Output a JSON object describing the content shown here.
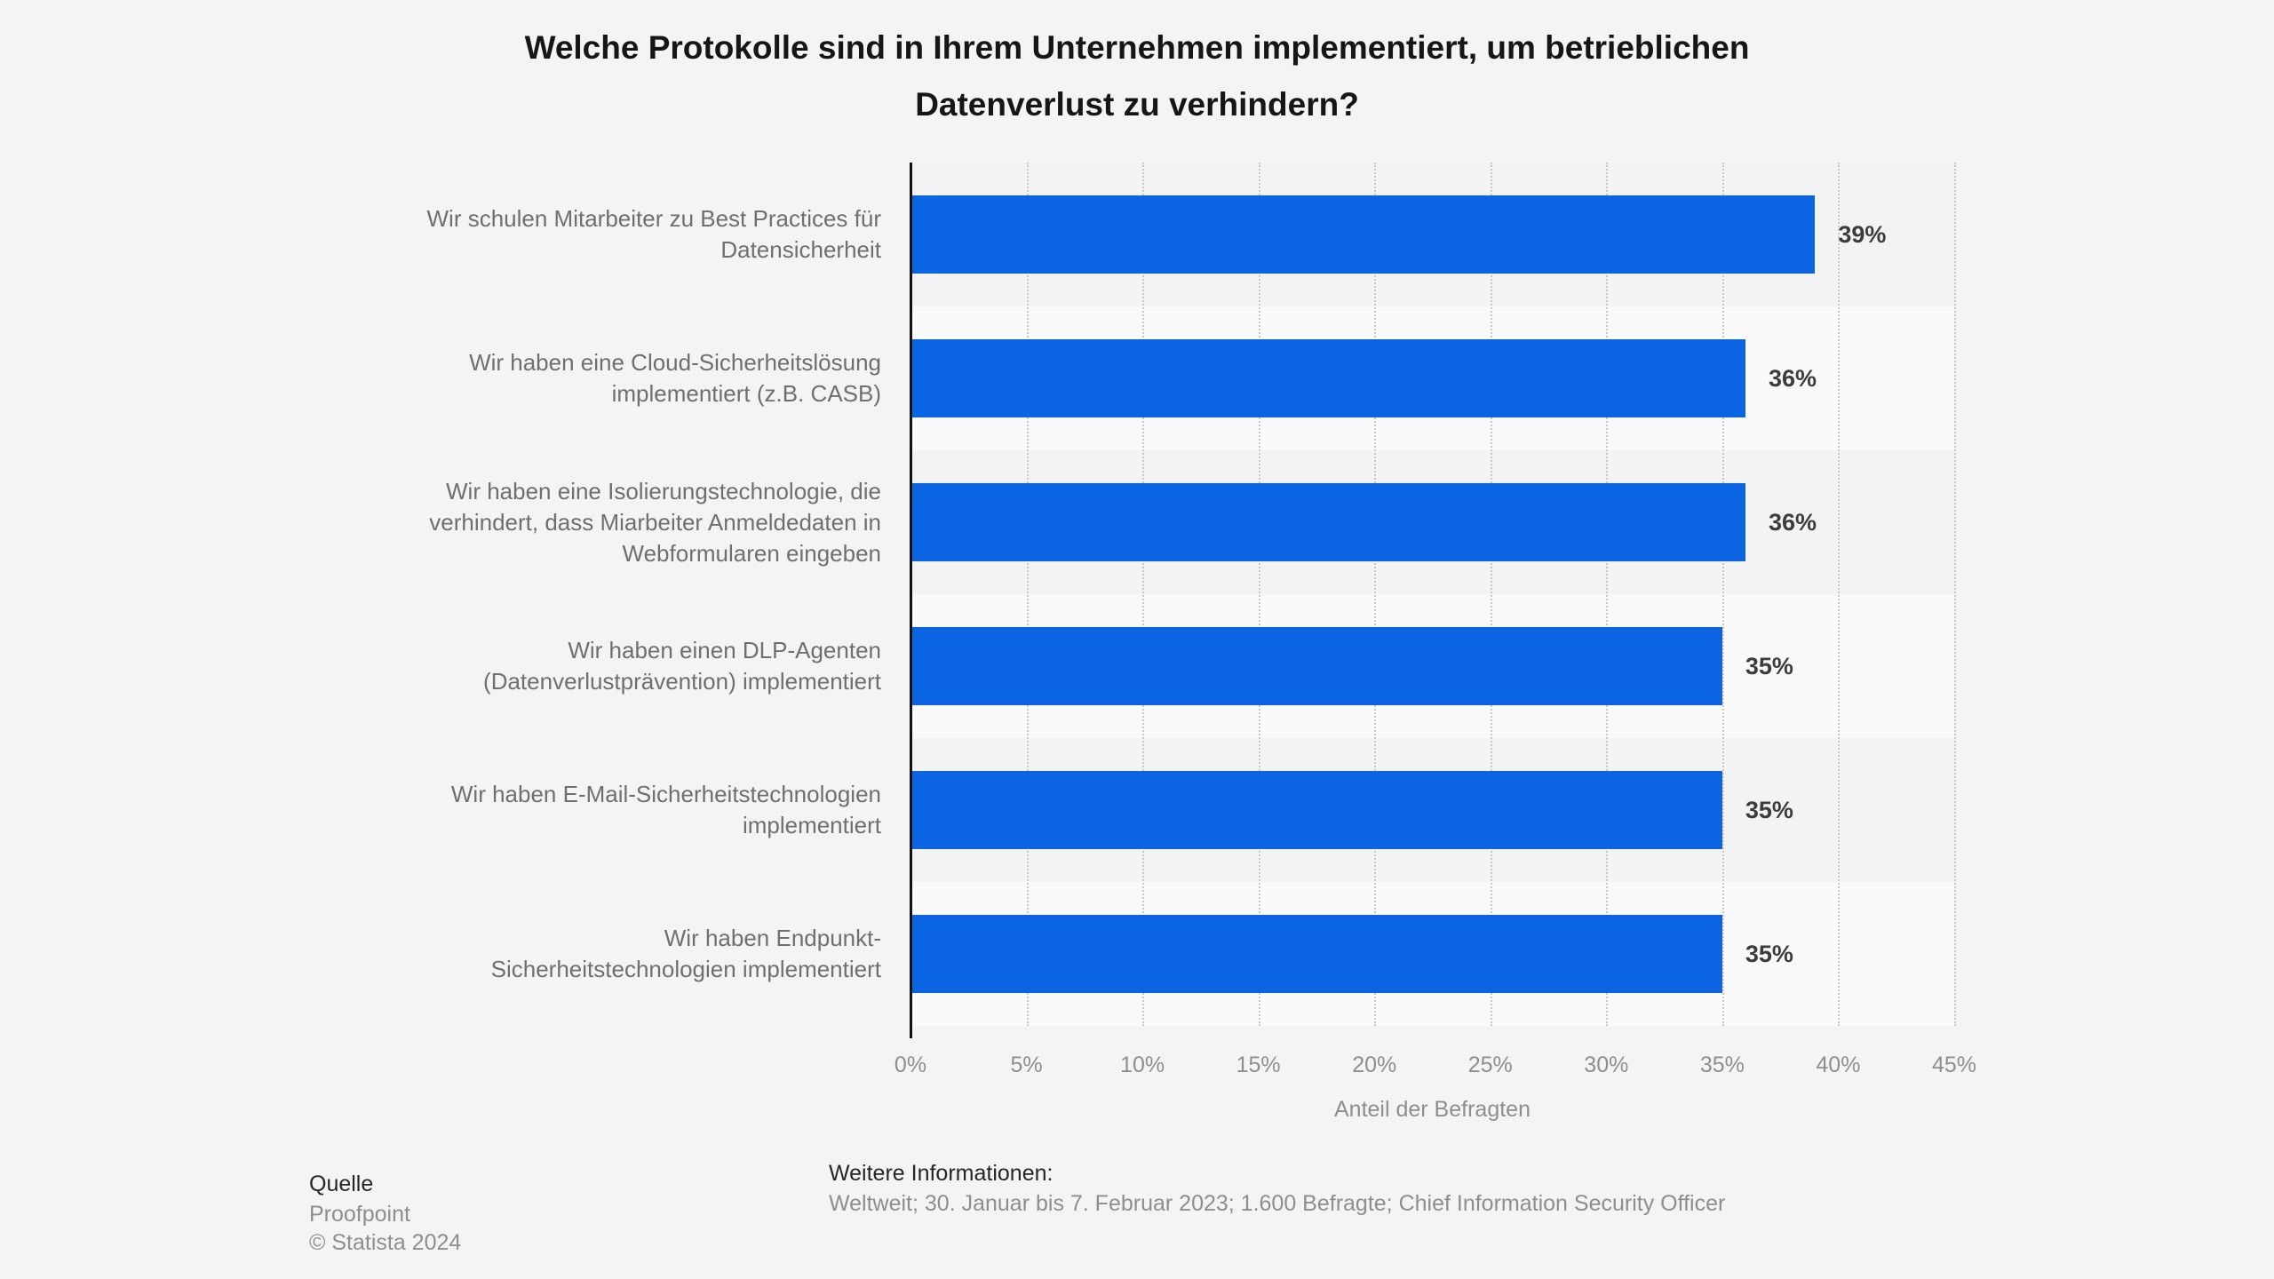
{
  "title": "Welche Protokolle sind in Ihrem Unternehmen implementiert, um betrieblichen\nDatenverlust zu verhindern?",
  "chart_data": {
    "type": "bar",
    "orientation": "horizontal",
    "title": "Welche Protokolle sind in Ihrem Unternehmen implementiert, um betrieblichen Datenverlust zu verhindern?",
    "categories": [
      "Wir schulen Mitarbeiter zu Best Practices für\nDatensicherheit",
      "Wir haben eine Cloud-Sicherheitslösung\nimplementiert (z.B. CASB)",
      "Wir haben eine Isolierungstechnologie, die\nverhindert, dass Miarbeiter Anmeldedaten in\nWebformularen eingeben",
      "Wir haben einen DLP-Agenten\n(Datenverlustprävention) implementiert",
      "Wir haben E-Mail-Sicherheitstechnologien\nimplementiert",
      "Wir haben Endpunkt-\nSicherheitstechnologien implementiert"
    ],
    "values": [
      39,
      36,
      36,
      35,
      35,
      35
    ],
    "value_labels": [
      "39%",
      "36%",
      "36%",
      "35%",
      "35%",
      "35%"
    ],
    "xlabel": "Anteil der Befragten",
    "ylabel": "",
    "xlim": [
      0,
      45
    ],
    "xticks": [
      "0%",
      "5%",
      "10%",
      "15%",
      "20%",
      "25%",
      "30%",
      "35%",
      "40%",
      "45%"
    ],
    "grid": "vertical-dotted",
    "legend": "none",
    "row_banding": "alternating"
  },
  "footer": {
    "source_label": "Quelle",
    "source": "Proofpoint",
    "copyright": "© Statista 2024",
    "info_label": "Weitere Informationen:",
    "info": "Weltweit; 30. Januar bis 7. Februar 2023; 1.600 Befragte; Chief Information Security Officer"
  },
  "colors": {
    "background": "#f4f4f4",
    "band_dark": "#f3f3f3",
    "band_light": "#fafafa",
    "bar": "#0b64e2",
    "axis": "#121212",
    "gridline": "#c9c9c9",
    "title_text": "#161616",
    "category_text": "#6f6f6f",
    "value_text": "#3c3c3c",
    "tick_text": "#8e8e8e",
    "footer_strong": "#262626",
    "footer_muted": "#8e8e8e"
  }
}
